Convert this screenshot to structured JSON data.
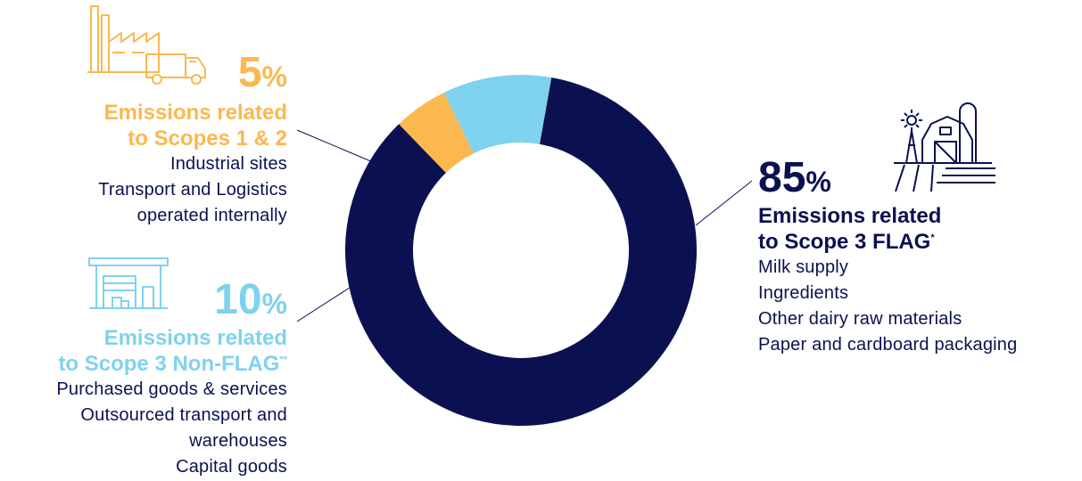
{
  "colors": {
    "scope3_flag": "#0b1150",
    "scope12": "#fbb84f",
    "scope3_nonflag": "#7fd2ee",
    "text": "#0b1150"
  },
  "chart_data": {
    "type": "pie",
    "variant": "donut",
    "slices": [
      {
        "key": "scope3_flag",
        "value": 85,
        "label": "85%",
        "color": "#0b1150"
      },
      {
        "key": "scope12",
        "value": 5,
        "label": "5%",
        "color": "#fbb84f"
      },
      {
        "key": "scope3_nonflag",
        "value": 10,
        "label": "10%",
        "color": "#7fd2ee"
      }
    ]
  },
  "scope12": {
    "percent": "5",
    "percent_sign": "%",
    "heading_line1": "Emissions related",
    "heading_line2": "to Scopes 1 & 2",
    "items": [
      "Industrial sites",
      "Transport and Logistics",
      "operated internally"
    ],
    "icon": "factory-truck-icon"
  },
  "scope3_nonflag": {
    "percent": "10",
    "percent_sign": "%",
    "heading_line1": "Emissions related",
    "heading_line2": "to Scope 3 Non-FLAG",
    "footnote_mark": "**",
    "items": [
      "Purchased goods & services",
      "Outsourced transport and",
      "warehouses",
      "Capital goods"
    ],
    "icon": "warehouse-icon"
  },
  "scope3_flag": {
    "percent": "85",
    "percent_sign": "%",
    "heading_line1": "Emissions related",
    "heading_line2": "to Scope 3 FLAG",
    "footnote_mark": "*",
    "items": [
      "Milk supply",
      "Ingredients",
      "Other dairy raw materials",
      "Paper and cardboard packaging"
    ],
    "icon": "farm-icon"
  }
}
